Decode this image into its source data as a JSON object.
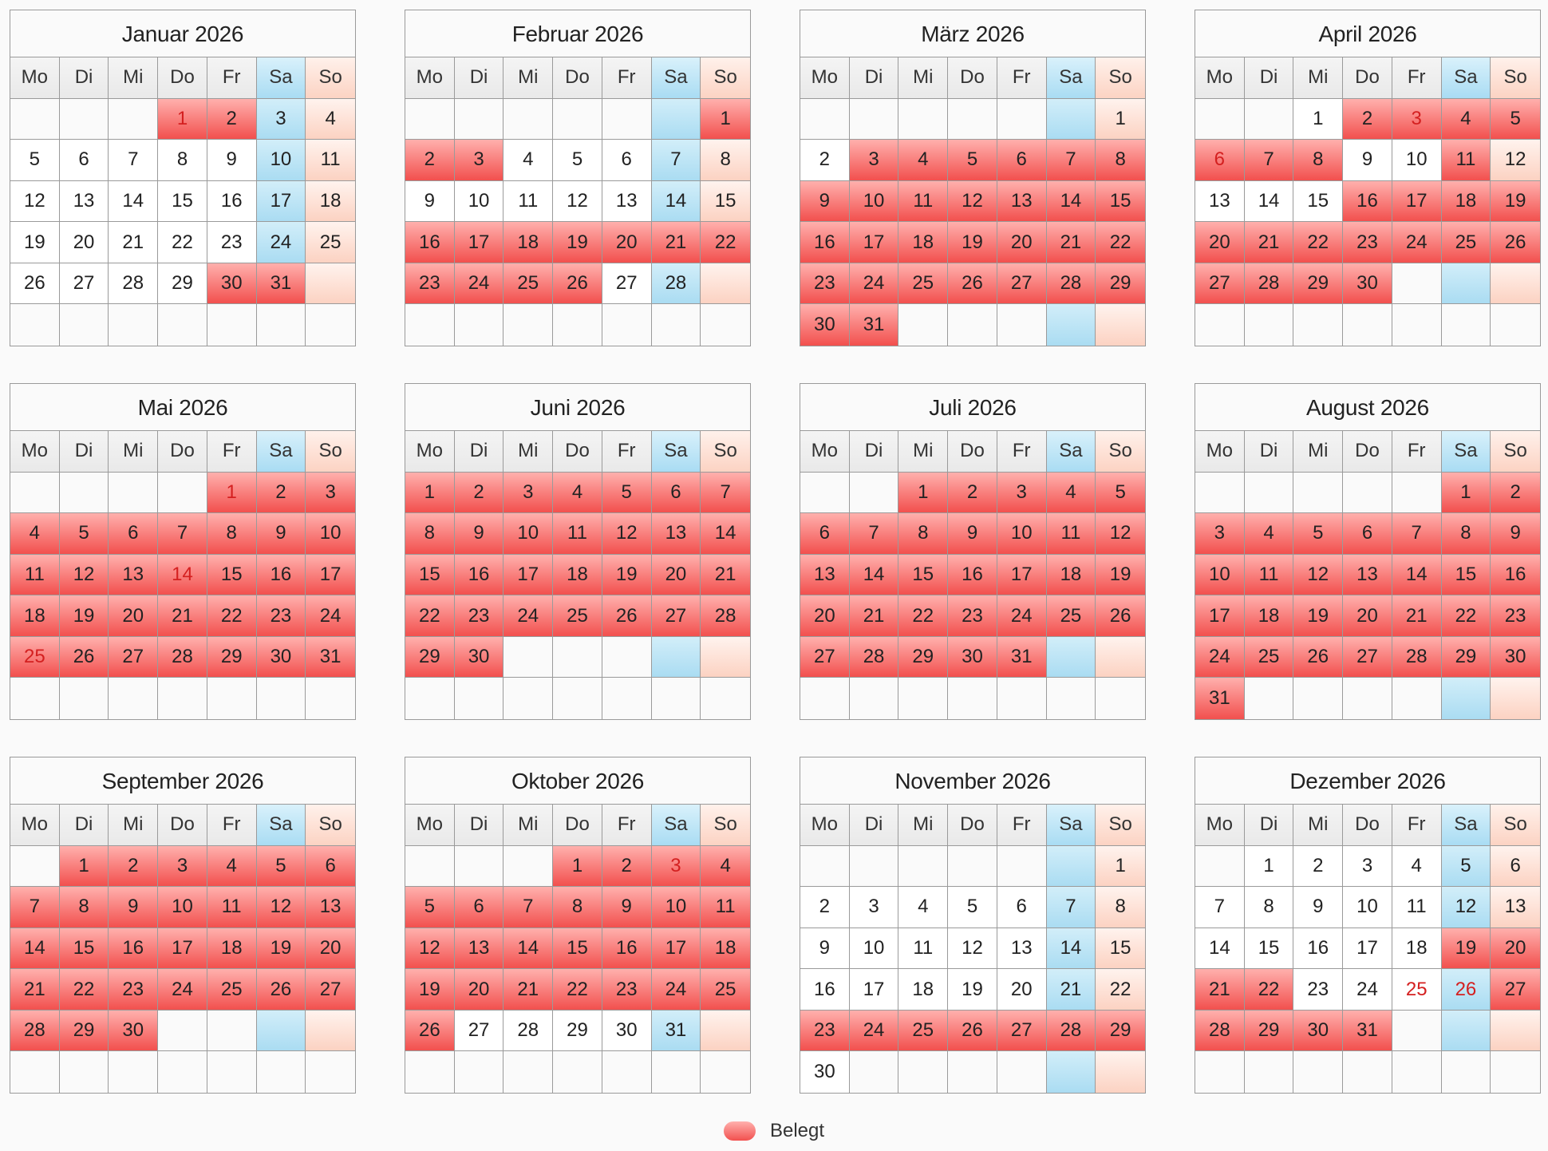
{
  "weekdays": [
    "Mo",
    "Di",
    "Mi",
    "Do",
    "Fr",
    "Sa",
    "So"
  ],
  "legend": {
    "label": "Belegt"
  },
  "colors": {
    "booked": "#f2504e",
    "saturday": "#aadcf2",
    "sunday": "#fcd2c2",
    "holiday_text": "#d42020"
  },
  "months": [
    {
      "title": "Januar 2026",
      "start_weekday": 4,
      "days_in_month": 31,
      "booked": [
        1,
        2,
        30,
        31
      ],
      "holidays": [
        1
      ]
    },
    {
      "title": "Februar 2026",
      "start_weekday": 7,
      "days_in_month": 28,
      "booked": [
        1,
        2,
        3,
        16,
        17,
        18,
        19,
        20,
        21,
        22,
        23,
        24,
        25,
        26
      ],
      "holidays": []
    },
    {
      "title": "März 2026",
      "start_weekday": 7,
      "days_in_month": 31,
      "booked": [
        3,
        4,
        5,
        6,
        7,
        8,
        9,
        10,
        11,
        12,
        13,
        14,
        15,
        16,
        17,
        18,
        19,
        20,
        21,
        22,
        23,
        24,
        25,
        26,
        27,
        28,
        29,
        30,
        31
      ],
      "holidays": []
    },
    {
      "title": "April 2026",
      "start_weekday": 3,
      "days_in_month": 30,
      "booked": [
        2,
        3,
        4,
        5,
        6,
        7,
        8,
        11,
        16,
        17,
        18,
        19,
        20,
        21,
        22,
        23,
        24,
        25,
        26,
        27,
        28,
        29,
        30
      ],
      "holidays": [
        3,
        6
      ]
    },
    {
      "title": "Mai 2026",
      "start_weekday": 5,
      "days_in_month": 31,
      "booked": [
        1,
        2,
        3,
        4,
        5,
        6,
        7,
        8,
        9,
        10,
        11,
        12,
        13,
        14,
        15,
        16,
        17,
        18,
        19,
        20,
        21,
        22,
        23,
        24,
        25,
        26,
        27,
        28,
        29,
        30,
        31
      ],
      "holidays": [
        1,
        14,
        25
      ]
    },
    {
      "title": "Juni 2026",
      "start_weekday": 1,
      "days_in_month": 30,
      "booked": [
        1,
        2,
        3,
        4,
        5,
        6,
        7,
        8,
        9,
        10,
        11,
        12,
        13,
        14,
        15,
        16,
        17,
        18,
        19,
        20,
        21,
        22,
        23,
        24,
        25,
        26,
        27,
        28,
        29,
        30
      ],
      "holidays": []
    },
    {
      "title": "Juli 2026",
      "start_weekday": 3,
      "days_in_month": 31,
      "booked": [
        1,
        2,
        3,
        4,
        5,
        6,
        7,
        8,
        9,
        10,
        11,
        12,
        13,
        14,
        15,
        16,
        17,
        18,
        19,
        20,
        21,
        22,
        23,
        24,
        25,
        26,
        27,
        28,
        29,
        30,
        31
      ],
      "holidays": []
    },
    {
      "title": "August 2026",
      "start_weekday": 6,
      "days_in_month": 31,
      "booked": [
        1,
        2,
        3,
        4,
        5,
        6,
        7,
        8,
        9,
        10,
        11,
        12,
        13,
        14,
        15,
        16,
        17,
        18,
        19,
        20,
        21,
        22,
        23,
        24,
        25,
        26,
        27,
        28,
        29,
        30,
        31
      ],
      "holidays": []
    },
    {
      "title": "September 2026",
      "start_weekday": 2,
      "days_in_month": 30,
      "booked": [
        1,
        2,
        3,
        4,
        5,
        6,
        7,
        8,
        9,
        10,
        11,
        12,
        13,
        14,
        15,
        16,
        17,
        18,
        19,
        20,
        21,
        22,
        23,
        24,
        25,
        26,
        27,
        28,
        29,
        30
      ],
      "holidays": []
    },
    {
      "title": "Oktober 2026",
      "start_weekday": 4,
      "days_in_month": 31,
      "booked": [
        1,
        2,
        3,
        4,
        5,
        6,
        7,
        8,
        9,
        10,
        11,
        12,
        13,
        14,
        15,
        16,
        17,
        18,
        19,
        20,
        21,
        22,
        23,
        24,
        25,
        26
      ],
      "holidays": [
        3
      ]
    },
    {
      "title": "November 2026",
      "start_weekday": 7,
      "days_in_month": 30,
      "booked": [
        23,
        24,
        25,
        26,
        27,
        28,
        29
      ],
      "holidays": []
    },
    {
      "title": "Dezember 2026",
      "start_weekday": 2,
      "days_in_month": 31,
      "booked": [
        19,
        20,
        21,
        22,
        27,
        28,
        29,
        30,
        31
      ],
      "holidays": [
        25,
        26
      ]
    }
  ]
}
